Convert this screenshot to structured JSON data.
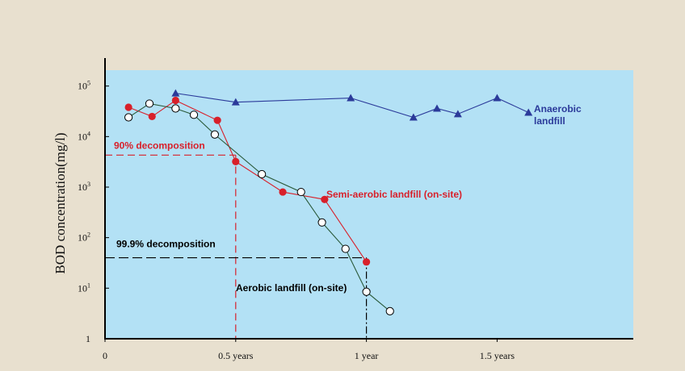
{
  "chart_data": {
    "type": "line",
    "ylabel": "BOD concentration(mg/l)",
    "y_scale": "log",
    "ylim": [
      1,
      100000
    ],
    "xlim": [
      0,
      2
    ],
    "y_ticks": [
      {
        "value": 1,
        "base": "1",
        "exp": ""
      },
      {
        "value": 10,
        "base": "10",
        "exp": "1"
      },
      {
        "value": 100,
        "base": "10",
        "exp": "2"
      },
      {
        "value": 1000,
        "base": "10",
        "exp": "3"
      },
      {
        "value": 10000,
        "base": "10",
        "exp": "4"
      },
      {
        "value": 100000,
        "base": "10",
        "exp": "5"
      }
    ],
    "x_ticks": [
      {
        "value": 0,
        "label": "0"
      },
      {
        "value": 0.5,
        "label": "0.5 years"
      },
      {
        "value": 1,
        "label": "1 year"
      },
      {
        "value": 1.5,
        "label": "1.5 years"
      }
    ],
    "colors": {
      "page_bg": "#e8e0cf",
      "plot_bg": "#b3e1f5",
      "anaerobic": "#2b3a9a",
      "semi": "#d8202a",
      "aerobic": "#000000",
      "aerobic_line": "#2a5a3a"
    },
    "series": [
      {
        "key": "anaerobic",
        "name": "Anaerobic landfill",
        "label_lines": [
          "Anaerobic",
          "landfill"
        ],
        "marker": "triangle",
        "x": [
          0.27,
          0.5,
          0.94,
          1.18,
          1.27,
          1.35,
          1.5,
          1.62
        ],
        "y": [
          72000,
          48000,
          58000,
          24000,
          36000,
          28000,
          58000,
          30000
        ]
      },
      {
        "key": "semi",
        "name": "Semi-aerobic landfill (on-site)",
        "label_lines": [
          "Semi-aerobic landfill (on-site)"
        ],
        "marker": "filled-circle",
        "x": [
          0.09,
          0.18,
          0.27,
          0.43,
          0.5,
          0.68,
          0.84,
          1.0
        ],
        "y": [
          38000,
          25000,
          52000,
          21000,
          3200,
          800,
          570,
          33
        ]
      },
      {
        "key": "aerobic",
        "name": "Aerobic landfill (on-site)",
        "label_lines": [
          "Aerobic landfill (on-site)"
        ],
        "marker": "open-circle",
        "x": [
          0.09,
          0.17,
          0.27,
          0.34,
          0.42,
          0.6,
          0.75,
          0.83,
          0.92,
          1.0,
          1.09
        ],
        "y": [
          24000,
          45000,
          36000,
          27000,
          11000,
          1800,
          800,
          200,
          60,
          8.5,
          3.5
        ]
      }
    ],
    "annotations": [
      {
        "key": "d90",
        "text": "90% decomposition",
        "x": 0.5,
        "y": 4300,
        "color": "#d8202a"
      },
      {
        "key": "d999",
        "text": "99.9% decomposition",
        "x": 1.0,
        "y": 40,
        "color": "#000000"
      }
    ]
  }
}
